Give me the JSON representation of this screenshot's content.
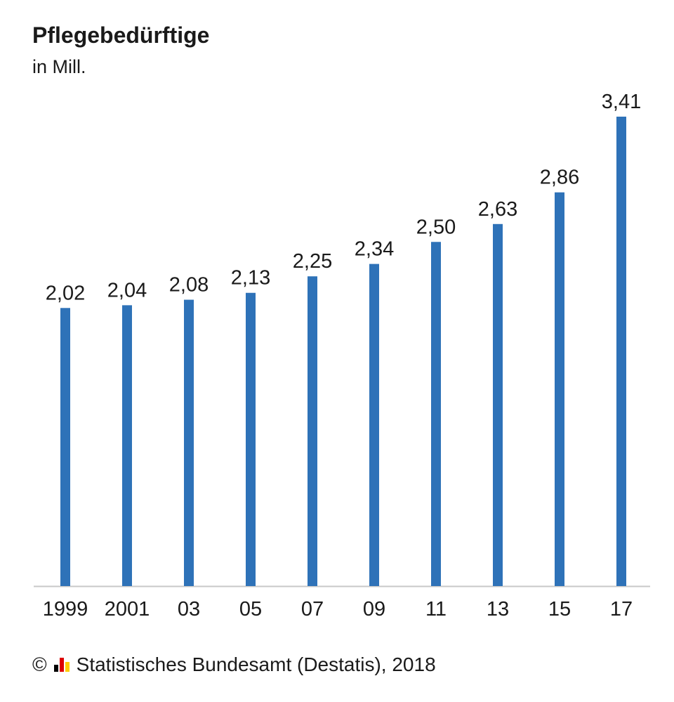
{
  "chart_data": {
    "type": "bar",
    "title": "Pflegebedürftige",
    "subtitle": "in Mill.",
    "categories": [
      "1999",
      "2001",
      "03",
      "05",
      "07",
      "09",
      "11",
      "13",
      "15",
      "17"
    ],
    "values": [
      2.02,
      2.04,
      2.08,
      2.13,
      2.25,
      2.34,
      2.5,
      2.63,
      2.86,
      3.41
    ],
    "value_labels": [
      "2,02",
      "2,04",
      "2,08",
      "2,13",
      "2,25",
      "2,34",
      "2,50",
      "2,63",
      "2,86",
      "3,41"
    ],
    "ylim": [
      0,
      3.41
    ],
    "grid": false,
    "bar_color": "#2e72b8",
    "axis_color": "#c8c8c8"
  },
  "source": {
    "copyright_symbol": "©",
    "text": "Statistisches Bundesamt (Destatis), 2018",
    "logo_colors": [
      "#000000",
      "#dd0000",
      "#ffcc00"
    ]
  }
}
